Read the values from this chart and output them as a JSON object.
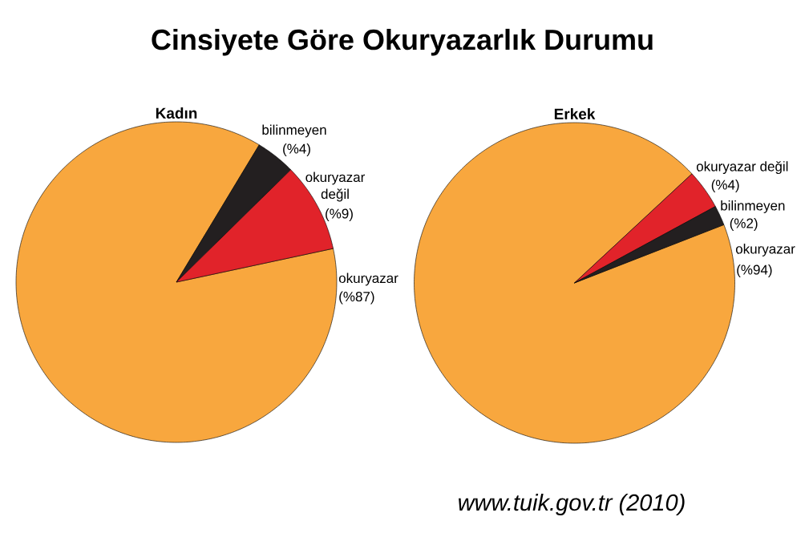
{
  "chart_data": [
    {
      "type": "other",
      "title": "Cinsiyete Göre Okuryazarlık Durumu",
      "annotations": [
        "www.tuik.gov.tr (2010)"
      ]
    },
    {
      "type": "pie",
      "title": "Kadın",
      "categories": [
        "okuryazar",
        "bilinmeyen",
        "okuryazar değil"
      ],
      "values": [
        87,
        4,
        9
      ],
      "colors": [
        "#f8a73e",
        "#231f20",
        "#e1232a"
      ],
      "value_labels": [
        "(%87)",
        "(%4)",
        "(%9)"
      ]
    },
    {
      "type": "pie",
      "title": "Erkek",
      "categories": [
        "okuryazar",
        "okuryazar değil",
        "bilinmeyen"
      ],
      "values": [
        94,
        4,
        2
      ],
      "colors": [
        "#f8a73e",
        "#e1232a",
        "#231f20"
      ],
      "value_labels": [
        "(%94)",
        "(%4)",
        "(%2)"
      ]
    }
  ]
}
